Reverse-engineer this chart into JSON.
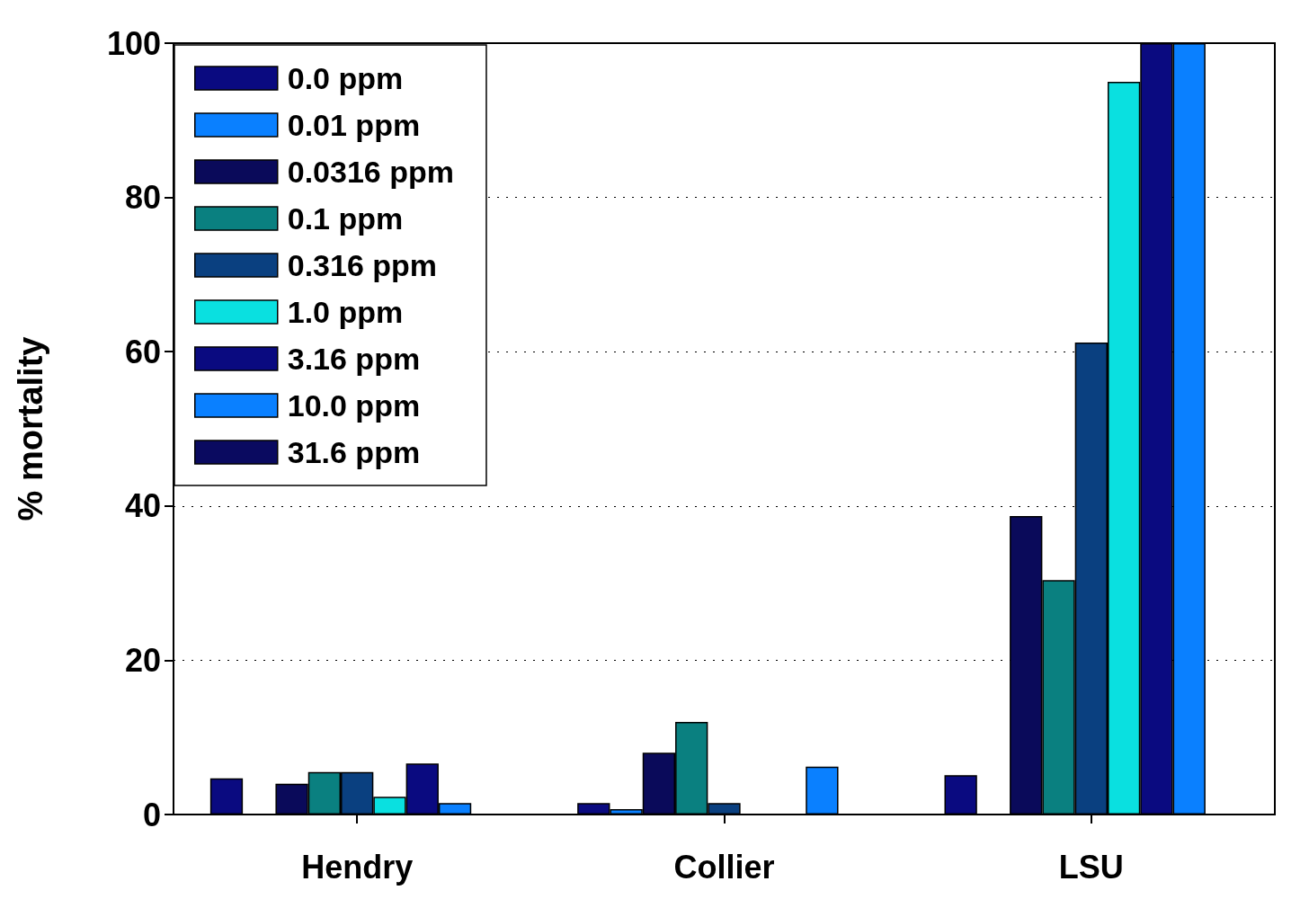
{
  "chart_data": {
    "type": "bar",
    "ylabel": "% mortality",
    "categories": [
      "Hendry",
      "Collier",
      "LSU"
    ],
    "series": [
      {
        "name": "0.0 ppm",
        "color": "#0a0a80",
        "values": [
          4.7,
          1.5,
          5.1
        ]
      },
      {
        "name": "0.01 ppm",
        "color": "#0a80ff",
        "values": [
          0,
          0.7,
          0
        ]
      },
      {
        "name": "0.0316 ppm",
        "color": "#0a0a5a",
        "values": [
          4.0,
          8.0,
          38.7
        ]
      },
      {
        "name": "0.1 ppm",
        "color": "#0a8080",
        "values": [
          5.5,
          12.0,
          30.4
        ]
      },
      {
        "name": "0.316 ppm",
        "color": "#0a4080",
        "values": [
          5.5,
          1.5,
          61.2
        ]
      },
      {
        "name": "1.0 ppm",
        "color": "#0ae0e0",
        "values": [
          2.3,
          0,
          95.0
        ]
      },
      {
        "name": "3.16 ppm",
        "color": "#0a0a80",
        "values": [
          6.6,
          0,
          100
        ]
      },
      {
        "name": "10.0 ppm",
        "color": "#0a80ff",
        "values": [
          1.5,
          6.2,
          100
        ]
      },
      {
        "name": "31.6 ppm",
        "color": "#0a0a60",
        "values": [
          0,
          0,
          0
        ]
      }
    ],
    "ylim": [
      0,
      100
    ],
    "yticks": [
      0,
      20,
      40,
      60,
      80,
      100
    ],
    "grid": "y",
    "legend": "top left"
  }
}
